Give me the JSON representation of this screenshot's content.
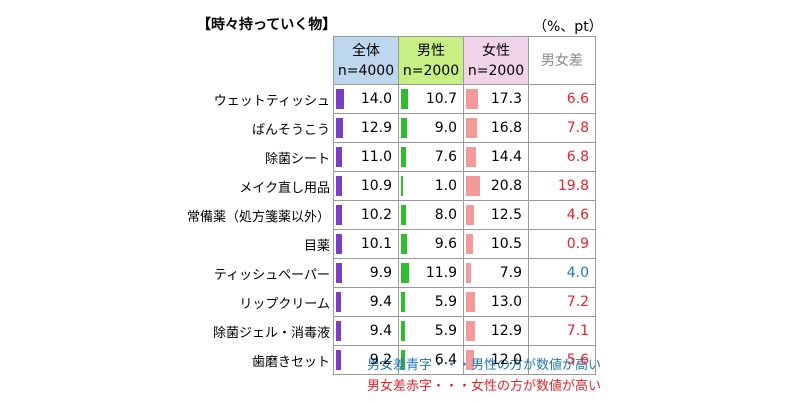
{
  "title": "【時々持っていく物】",
  "unit": "（%、pt）",
  "headers": {
    "all": {
      "label": "全体",
      "n": "n=4000"
    },
    "male": {
      "label": "男性",
      "n": "n=2000"
    },
    "female": {
      "label": "女性",
      "n": "n=2000"
    },
    "diff": {
      "label": "男女差"
    }
  },
  "colors": {
    "all_bar": "#7b3fc4",
    "male_bar": "#2bbf2b",
    "female_bar": "#f59a9a",
    "diff_red": "#e8232a",
    "diff_blue": "#1f77b4"
  },
  "rows": [
    {
      "label": "ウェットティッシュ",
      "all": "14.0",
      "male": "10.7",
      "female": "17.3",
      "diff": "6.6",
      "diff_color": "red"
    },
    {
      "label": "ばんそうこう",
      "all": "12.9",
      "male": "9.0",
      "female": "16.8",
      "diff": "7.8",
      "diff_color": "red"
    },
    {
      "label": "除菌シート",
      "all": "11.0",
      "male": "7.6",
      "female": "14.4",
      "diff": "6.8",
      "diff_color": "red"
    },
    {
      "label": "メイク直し用品",
      "all": "10.9",
      "male": "1.0",
      "female": "20.8",
      "diff": "19.8",
      "diff_color": "red"
    },
    {
      "label": "常備薬（処方箋薬以外）",
      "all": "10.2",
      "male": "8.0",
      "female": "12.5",
      "diff": "4.6",
      "diff_color": "red"
    },
    {
      "label": "目薬",
      "all": "10.1",
      "male": "9.6",
      "female": "10.5",
      "diff": "0.9",
      "diff_color": "red"
    },
    {
      "label": "ティッシュペーパー",
      "all": "9.9",
      "male": "11.9",
      "female": "7.9",
      "diff": "4.0",
      "diff_color": "blue"
    },
    {
      "label": "リップクリーム",
      "all": "9.4",
      "male": "5.9",
      "female": "13.0",
      "diff": "7.2",
      "diff_color": "red"
    },
    {
      "label": "除菌ジェル・消毒液",
      "all": "9.4",
      "male": "5.9",
      "female": "12.9",
      "diff": "7.1",
      "diff_color": "red"
    },
    {
      "label": "歯磨きセット",
      "all": "9.2",
      "male": "6.4",
      "female": "12.0",
      "diff": "5.6",
      "diff_color": "red"
    }
  ],
  "legend": {
    "blue": "男女差青字・・・男性の方が数値が高い",
    "red": "男女差赤字・・・女性の方が数値が高い"
  }
}
